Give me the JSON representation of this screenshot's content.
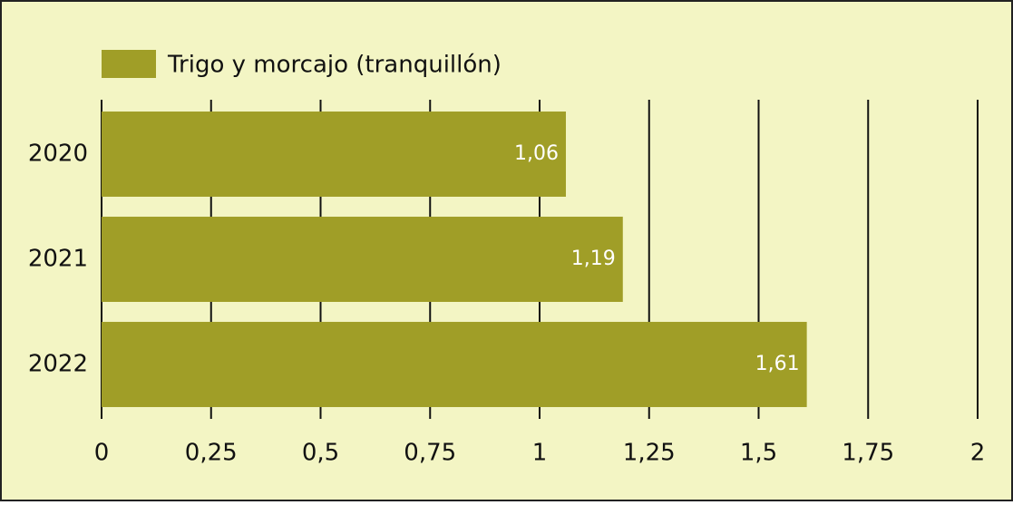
{
  "chart_data": {
    "type": "bar",
    "orientation": "horizontal",
    "categories": [
      "2020",
      "2021",
      "2022"
    ],
    "series": [
      {
        "name": "Trigo y morcajo (tranquillón)",
        "color": "#a09e27",
        "values": [
          1.06,
          1.19,
          1.61
        ],
        "value_labels": [
          "1,06",
          "1,19",
          "1,61"
        ]
      }
    ],
    "xlim": [
      0,
      2
    ],
    "xticks": [
      0,
      {
        "value": 0.25,
        "label": "0,25"
      },
      {
        "value": 0.5,
        "label": "0,5"
      },
      {
        "value": 0.75,
        "label": "0,75"
      },
      1,
      {
        "value": 1.25,
        "label": "1,25"
      },
      {
        "value": 1.5,
        "label": "1,5"
      },
      {
        "value": 1.75,
        "label": "1,75"
      },
      2
    ],
    "grid": true,
    "legend": "top-left"
  }
}
